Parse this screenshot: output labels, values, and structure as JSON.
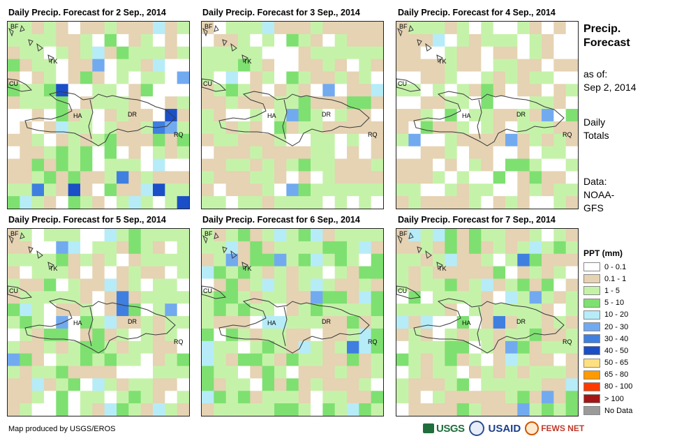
{
  "panels": [
    {
      "title": "Daily Precip. Forecast for 2 Sep., 2014"
    },
    {
      "title": "Daily Precip. Forecast for 3 Sep., 2014"
    },
    {
      "title": "Daily Precip. Forecast for 4 Sep., 2014"
    },
    {
      "title": "Daily Precip. Forecast for 5 Sep., 2014"
    },
    {
      "title": "Daily Precip. Forecast for 6 Sep., 2014"
    },
    {
      "title": "Daily Precip. Forecast for 7 Sep., 2014"
    }
  ],
  "map_labels": {
    "bf": "BF",
    "tk": "TK",
    "cu": "CU",
    "ha": "HA",
    "dr": "DR",
    "rq": "RQ"
  },
  "sidebar": {
    "title_line1": "Precip.",
    "title_line2": "Forecast",
    "asof_line1": "as of:",
    "asof_line2": "Sep 2, 2014",
    "totals_line1": "Daily",
    "totals_line2": "Totals",
    "data_line1": "Data:",
    "data_line2": "NOAA-",
    "data_line3": "GFS"
  },
  "legend": {
    "title": "PPT (mm)",
    "items": [
      {
        "label": "0 - 0.1",
        "color": "#ffffff"
      },
      {
        "label": "0.1 - 1",
        "color": "#e5d3b3"
      },
      {
        "label": "1 - 5",
        "color": "#c5f2a9"
      },
      {
        "label": "5 - 10",
        "color": "#7ee070"
      },
      {
        "label": "10 - 20",
        "color": "#b6ecf8"
      },
      {
        "label": "20 - 30",
        "color": "#72aaf0"
      },
      {
        "label": "30 - 40",
        "color": "#3f7fe0"
      },
      {
        "label": "40 - 50",
        "color": "#1a4fc8"
      },
      {
        "label": "50 - 65",
        "color": "#ffe080"
      },
      {
        "label": "65 - 80",
        "color": "#ff9a00"
      },
      {
        "label": "80 - 100",
        "color": "#ff3a00"
      },
      {
        "label": "> 100",
        "color": "#a51515"
      },
      {
        "label": "No Data",
        "color": "#9a9a9a"
      }
    ]
  },
  "credit": "Map produced by USGS/EROS",
  "logos": {
    "usgs": "USGS",
    "usaid": "USAID",
    "fews": "FEWS NET"
  }
}
